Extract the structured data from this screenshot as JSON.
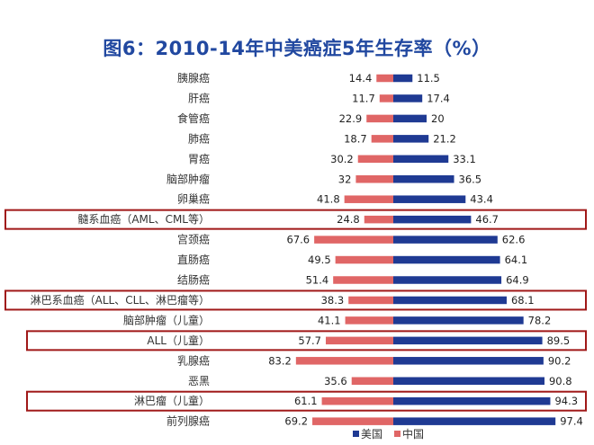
{
  "chart_data": {
    "type": "bar",
    "title": "图6：2010-14年中美癌症5年生存率（%）",
    "categories": [
      "胰腺癌",
      "肝癌",
      "食管癌",
      "肺癌",
      "胃癌",
      "脑部肿瘤",
      "卵巢癌",
      "髓系血癌（AML、CML等）",
      "宫颈癌",
      "直肠癌",
      "结肠癌",
      "淋巴系血癌（ALL、CLL、淋巴瘤等）",
      "脑部肿瘤（儿童）",
      "ALL（儿童）",
      "乳腺癌",
      "恶黑",
      "淋巴瘤（儿童）",
      "前列腺癌"
    ],
    "series": [
      {
        "name": "中国",
        "color": "#e06666",
        "values": [
          14.4,
          11.7,
          22.9,
          18.7,
          30.2,
          32,
          41.8,
          24.8,
          67.6,
          49.5,
          51.4,
          38.3,
          41.1,
          57.7,
          83.2,
          35.6,
          61.1,
          69.2
        ]
      },
      {
        "name": "美国",
        "color": "#1f3a93",
        "values": [
          11.5,
          17.4,
          20,
          21.2,
          33.1,
          36.5,
          43.4,
          46.7,
          62.6,
          64.1,
          64.9,
          68.1,
          78.2,
          89.5,
          90.2,
          90.8,
          94.3,
          97.4
        ]
      }
    ],
    "highlighted_categories": [
      "髓系血癌（AML、CML等）",
      "淋巴系血癌（ALL、CLL、淋巴瘤等）",
      "ALL（儿童）",
      "淋巴瘤（儿童）"
    ],
    "highlight_color": "#a01818",
    "xlim": [
      0,
      100
    ],
    "legend_position": "bottom",
    "legend": [
      "美国",
      "中国"
    ]
  }
}
